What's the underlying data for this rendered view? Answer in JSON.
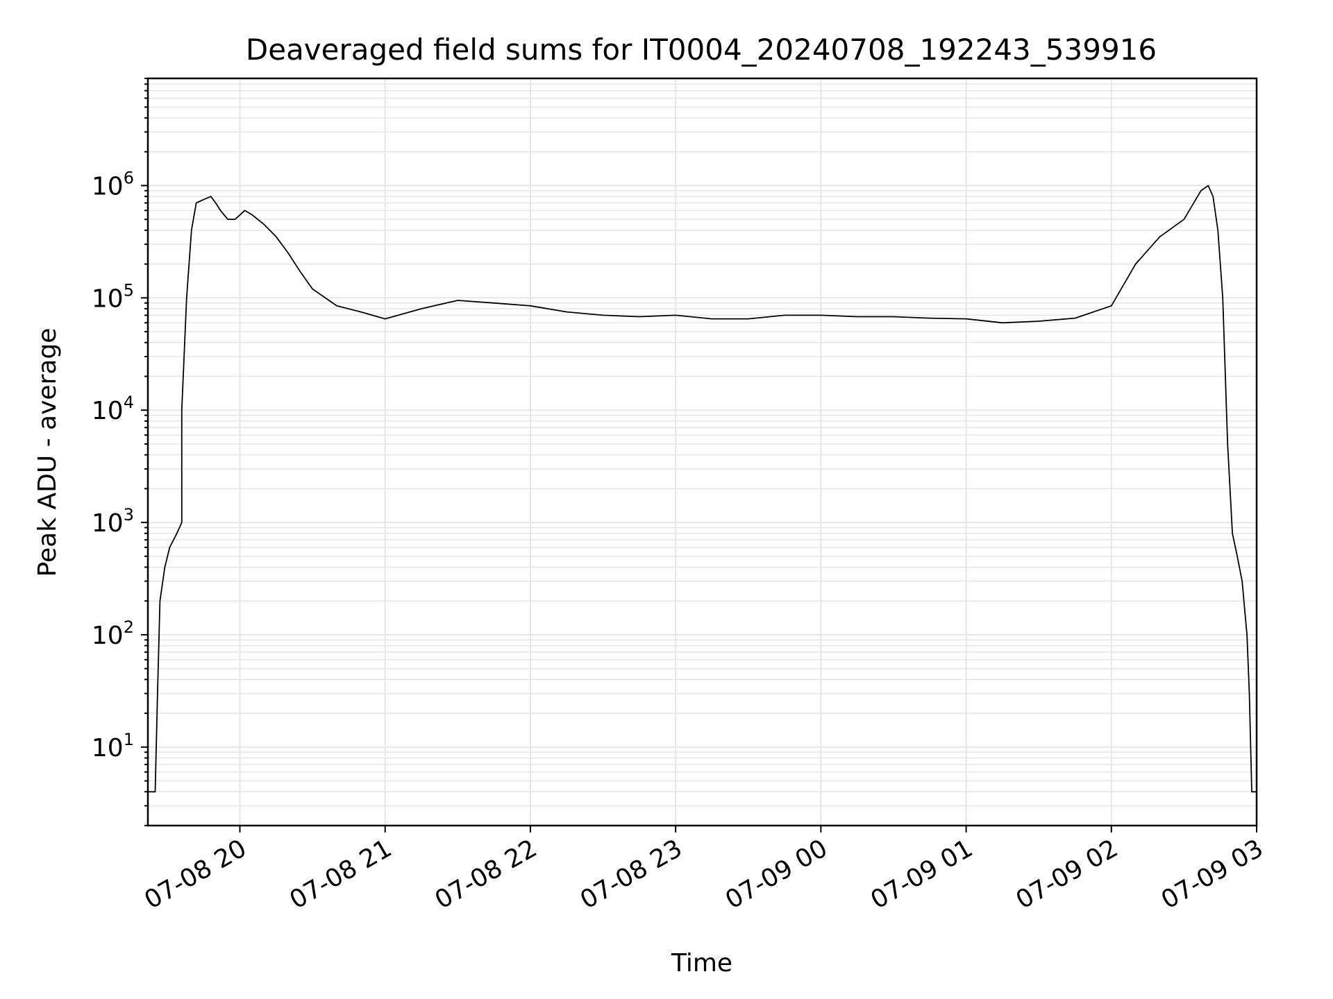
{
  "chart_data": {
    "type": "line",
    "title": "Deaveraged field sums for IT0004_20240708_192243_539916",
    "xlabel": "Time",
    "ylabel": "Peak ADU - average",
    "yscale": "log",
    "grid": true,
    "colors": {
      "line": "#000000",
      "grid": "#e6e6e6",
      "axes": "#000000"
    },
    "xlim": [
      "2024-07-08 19:22",
      "2024-07-09 03:00"
    ],
    "ylim": [
      2,
      9000000
    ],
    "xticks": [
      {
        "value": "2024-07-08 20:00",
        "label": "07-08 20"
      },
      {
        "value": "2024-07-08 21:00",
        "label": "07-08 21"
      },
      {
        "value": "2024-07-08 22:00",
        "label": "07-08 22"
      },
      {
        "value": "2024-07-08 23:00",
        "label": "07-08 23"
      },
      {
        "value": "2024-07-09 00:00",
        "label": "07-09 00"
      },
      {
        "value": "2024-07-09 01:00",
        "label": "07-09 01"
      },
      {
        "value": "2024-07-09 02:00",
        "label": "07-09 02"
      },
      {
        "value": "2024-07-09 03:00",
        "label": "07-09 03"
      }
    ],
    "yticks": [
      {
        "value": 10,
        "base": "10",
        "exp": "1"
      },
      {
        "value": 100,
        "base": "10",
        "exp": "2"
      },
      {
        "value": 1000,
        "base": "10",
        "exp": "3"
      },
      {
        "value": 10000,
        "base": "10",
        "exp": "4"
      },
      {
        "value": 100000,
        "base": "10",
        "exp": "5"
      },
      {
        "value": 1000000,
        "base": "10",
        "exp": "6"
      }
    ],
    "series": [
      {
        "x": [
          "2024-07-08 19:22",
          "2024-07-08 19:25",
          "2024-07-08 19:26",
          "2024-07-08 19:27",
          "2024-07-08 19:29",
          "2024-07-08 19:31",
          "2024-07-08 19:34",
          "2024-07-08 19:36",
          "2024-07-08 19:36",
          "2024-07-08 19:38",
          "2024-07-08 19:40",
          "2024-07-08 19:42",
          "2024-07-08 19:45",
          "2024-07-08 19:48",
          "2024-07-08 19:50",
          "2024-07-08 19:52",
          "2024-07-08 19:55",
          "2024-07-08 19:58",
          "2024-07-08 20:02",
          "2024-07-08 20:05",
          "2024-07-08 20:10",
          "2024-07-08 20:15",
          "2024-07-08 20:20",
          "2024-07-08 20:25",
          "2024-07-08 20:30",
          "2024-07-08 20:40",
          "2024-07-08 20:50",
          "2024-07-08 21:00",
          "2024-07-08 21:15",
          "2024-07-08 21:30",
          "2024-07-08 21:45",
          "2024-07-08 22:00",
          "2024-07-08 22:15",
          "2024-07-08 22:30",
          "2024-07-08 22:45",
          "2024-07-08 23:00",
          "2024-07-08 23:15",
          "2024-07-08 23:30",
          "2024-07-08 23:45",
          "2024-07-09 00:00",
          "2024-07-09 00:15",
          "2024-07-09 00:30",
          "2024-07-09 00:45",
          "2024-07-09 01:00",
          "2024-07-09 01:15",
          "2024-07-09 01:30",
          "2024-07-09 01:45",
          "2024-07-09 02:00",
          "2024-07-09 02:10",
          "2024-07-09 02:20",
          "2024-07-09 02:30",
          "2024-07-09 02:37",
          "2024-07-09 02:40",
          "2024-07-09 02:42",
          "2024-07-09 02:44",
          "2024-07-09 02:46",
          "2024-07-09 02:48",
          "2024-07-09 02:50",
          "2024-07-09 02:52",
          "2024-07-09 02:54",
          "2024-07-09 02:56",
          "2024-07-09 02:57",
          "2024-07-09 02:58",
          "2024-07-09 03:00"
        ],
        "y": [
          4,
          4,
          30,
          200,
          400,
          600,
          800,
          1000,
          10000,
          100000,
          400000,
          700000,
          750000,
          800000,
          700000,
          600000,
          500000,
          500000,
          600000,
          550000,
          450000,
          350000,
          250000,
          170000,
          120000,
          85000,
          75000,
          65000,
          80000,
          95000,
          90000,
          85000,
          75000,
          70000,
          68000,
          70000,
          65000,
          65000,
          70000,
          70000,
          68000,
          68000,
          66000,
          65000,
          60000,
          62000,
          66000,
          85000,
          200000,
          350000,
          500000,
          900000,
          1000000,
          800000,
          400000,
          100000,
          5000,
          800,
          500,
          300,
          100,
          30,
          4,
          4
        ]
      }
    ]
  }
}
